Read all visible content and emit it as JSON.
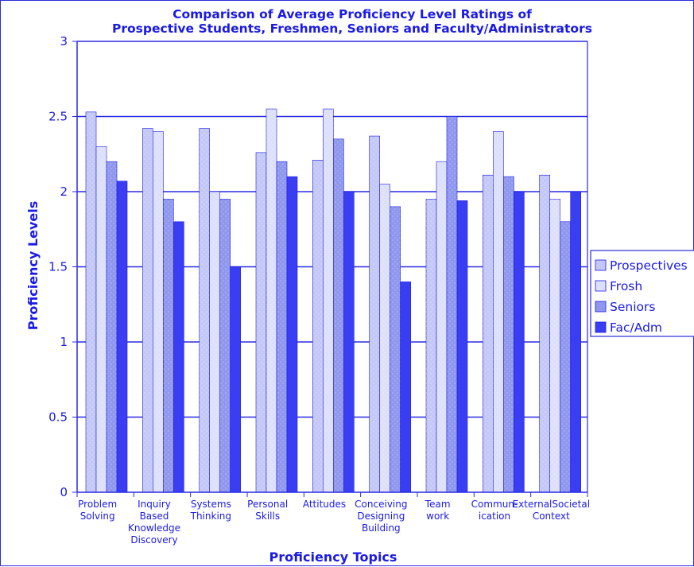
{
  "chart_data": {
    "type": "bar",
    "title_lines": [
      "Comparison of Average Proficiency Level Ratings of",
      "Prospective Students, Freshmen, Seniors and Faculty/Administrators"
    ],
    "xlabel": "Proficiency Topics",
    "ylabel": "Proficiency Levels",
    "ylim": [
      0,
      3
    ],
    "yticks": [
      "0",
      "0.5",
      "1",
      "1.5",
      "2",
      "2.5",
      "3"
    ],
    "grid": "horizontal major gridlines",
    "legend_position": "right",
    "categories": [
      [
        "Problem",
        "Solving"
      ],
      [
        "Inquiry",
        "Based",
        "Knowledge",
        "Discovery"
      ],
      [
        "Systems",
        "Thinking"
      ],
      [
        "Personal",
        "Skills"
      ],
      [
        "Attitudes"
      ],
      [
        "Conceiving",
        "Designing",
        "Building"
      ],
      [
        "Team",
        "work"
      ],
      [
        "Commun-",
        "ication"
      ],
      [
        "ExternalSocietal",
        "Context"
      ]
    ],
    "series": [
      {
        "name": "Prospectives",
        "color": "#c4c8f7",
        "values": [
          2.53,
          2.42,
          2.42,
          2.26,
          2.21,
          2.37,
          1.95,
          2.11,
          2.11
        ]
      },
      {
        "name": "Frosh",
        "color": "#dde0fa",
        "values": [
          2.3,
          2.4,
          2.0,
          2.55,
          2.55,
          2.05,
          2.2,
          2.4,
          1.95
        ]
      },
      {
        "name": "Seniors",
        "color": "#8f98ee",
        "values": [
          2.2,
          1.95,
          1.95,
          2.2,
          2.35,
          1.9,
          2.5,
          2.1,
          1.8
        ]
      },
      {
        "name": "Fac/Adm",
        "color": "#3a3ef2",
        "values": [
          2.07,
          1.8,
          1.5,
          2.1,
          2.0,
          1.4,
          1.94,
          2.0,
          2.0
        ]
      }
    ]
  }
}
